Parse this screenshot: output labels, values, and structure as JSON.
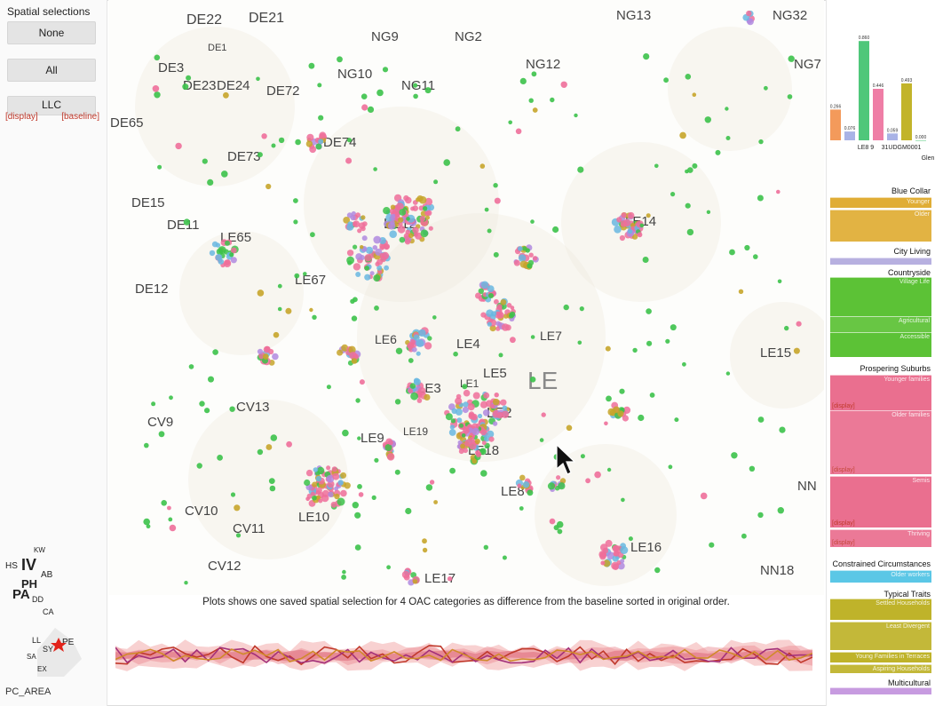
{
  "left_panel": {
    "title": "Spatial selections",
    "buttons": {
      "none": "None",
      "all": "All",
      "llc": "LLC"
    },
    "llc_links": {
      "display": "[display]",
      "baseline": "[baseline]"
    },
    "mini_map_label": "PC_AREA",
    "mini_map_codes": [
      {
        "t": "KW"
      },
      {
        "t": "HS"
      },
      {
        "t": "IV"
      },
      {
        "t": "AB"
      },
      {
        "t": "PH"
      },
      {
        "t": "PA"
      },
      {
        "t": "DD"
      },
      {
        "t": "CA"
      },
      {
        "t": "LL"
      },
      {
        "t": "SY"
      },
      {
        "t": "PE"
      },
      {
        "t": "SA"
      },
      {
        "t": "EX"
      }
    ]
  },
  "map": {
    "region_labels": [
      "DE22",
      "DE21",
      "DE1",
      "NG9",
      "NG2",
      "NG13",
      "NG32",
      "NG10",
      "NG12",
      "NG11",
      "DE3",
      "DE23",
      "DE24",
      "DE72",
      "DE65",
      "DE74",
      "DE73",
      "DE15",
      "DE11",
      "LE65",
      "DE12",
      "LE12",
      "LE14",
      "LE67",
      "LE6",
      "LE4",
      "LE7",
      "LE5",
      "LE1",
      "LE3",
      "LE",
      "LE2",
      "LE19",
      "LE9",
      "LE18",
      "LE15",
      "CV9",
      "CV13",
      "NN",
      "LE8",
      "CV10",
      "LE10",
      "CV11",
      "CV12",
      "LE16",
      "LE17",
      "NN18",
      "NG7"
    ],
    "caption": "Plots shows one saved spatial selection for 4 OAC categories as difference from the baseline sorted in original order."
  },
  "bar_chart": {
    "values": [
      {
        "label": "0.266",
        "value": 0.266,
        "color": "#f39a5b"
      },
      {
        "label": "0.076",
        "value": 0.076,
        "color": "#a9b3e6"
      },
      {
        "label": "0.860",
        "value": 0.86,
        "color": "#4fc77a"
      },
      {
        "label": "0.446",
        "value": 0.446,
        "color": "#ef7ea6"
      },
      {
        "label": "0.059",
        "value": 0.059,
        "color": "#a9b3e6"
      },
      {
        "label": "0.493",
        "value": 0.493,
        "color": "#c2b42a"
      },
      {
        "label": "0.000",
        "value": 0.0,
        "color": "#4fc77a"
      }
    ],
    "x_labels": [
      "LE8 9",
      "31UDGM0001",
      "Glen"
    ]
  },
  "categories": [
    {
      "name": "Blue Collar",
      "color": "#e0ad35",
      "subs": [
        {
          "label": "Younger",
          "display": ""
        },
        {
          "label": "Older",
          "display": ""
        }
      ]
    },
    {
      "name": "City Living",
      "color": "#b7b0e0",
      "subs": [
        {
          "label": "",
          "display": ""
        }
      ]
    },
    {
      "name": "Countryside",
      "color": "#5cc236",
      "subs": [
        {
          "label": "Village Life",
          "display": ""
        },
        {
          "label": "Agricultural",
          "display": ""
        },
        {
          "label": "Accessible",
          "display": ""
        }
      ]
    },
    {
      "name": "Prospering Suburbs",
      "color": "#ea6f8f",
      "subs": [
        {
          "label": "Younger families",
          "display": "[display]"
        },
        {
          "label": "Older families",
          "display": "[display]"
        },
        {
          "label": "Semis",
          "display": "[display]"
        },
        {
          "label": "Thriving",
          "display": "[display]"
        }
      ]
    },
    {
      "name": "Constrained Circumstances",
      "color": "#5bc7e6",
      "subs": [
        {
          "label": "Older workers",
          "display": ""
        }
      ]
    },
    {
      "name": "Typical Traits",
      "color": "#bfb32a",
      "subs": [
        {
          "label": "Settled Households",
          "display": ""
        },
        {
          "label": "Least Divergent",
          "display": ""
        },
        {
          "label": "Young Families in Terraces",
          "display": ""
        },
        {
          "label": "Aspiring Households",
          "display": ""
        }
      ]
    },
    {
      "name": "Multicultural",
      "color": "#c79be0",
      "subs": [
        {
          "label": "",
          "display": ""
        }
      ]
    }
  ],
  "colors": {
    "green": "#3cc24a",
    "pink": "#ee6f9a",
    "olive": "#c7a52a",
    "blue": "#6ab7e0",
    "purple": "#b08adf",
    "line_red": "#c0392b"
  }
}
